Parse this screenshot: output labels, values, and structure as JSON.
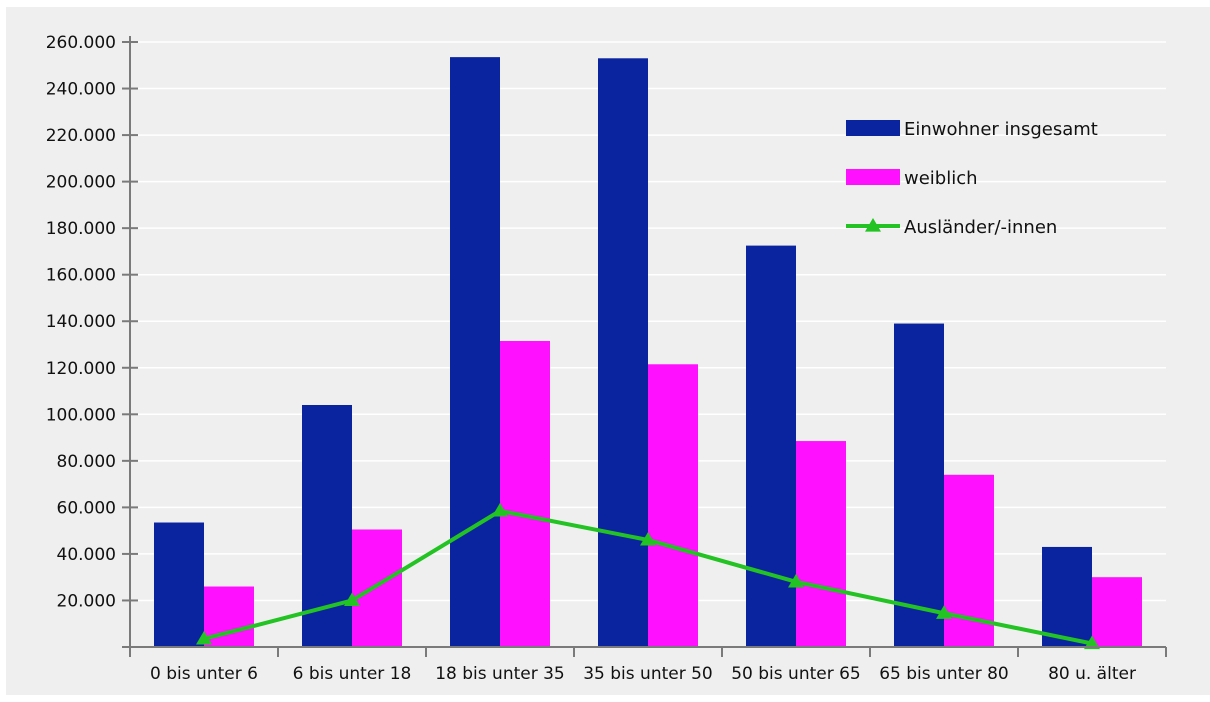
{
  "chart_data": {
    "type": "bar",
    "title": "",
    "xlabel": "",
    "ylabel": "",
    "categories": [
      "0 bis unter 6",
      "6 bis unter 18",
      "18 bis unter 35",
      "35 bis unter 50",
      "50 bis unter 65",
      "65 bis unter 80",
      "80 u. älter"
    ],
    "ylim": [
      0,
      260000
    ],
    "yticks": [
      20000,
      40000,
      60000,
      80000,
      100000,
      120000,
      140000,
      160000,
      180000,
      200000,
      220000,
      240000,
      260000
    ],
    "ytick_labels": [
      "20.000",
      "40.000",
      "60.000",
      "80.000",
      "100.000",
      "120.000",
      "140.000",
      "160.000",
      "180.000",
      "200.000",
      "220.000",
      "240.000",
      "260.000"
    ],
    "grid": true,
    "legend_position": "top-right",
    "series": [
      {
        "name": "Einwohner insgesamt",
        "kind": "bar",
        "color": "#0a24a0",
        "values": [
          53500,
          104000,
          253500,
          253000,
          172500,
          139000,
          43000
        ]
      },
      {
        "name": "weiblich",
        "kind": "bar",
        "color": "#ff10ff",
        "values": [
          26000,
          50500,
          131500,
          121500,
          88500,
          74000,
          30000
        ]
      },
      {
        "name": "Ausländer/-innen",
        "kind": "line",
        "marker": "triangle",
        "color": "#22c322",
        "values": [
          3500,
          20000,
          58500,
          46000,
          28000,
          14500,
          1500
        ]
      }
    ]
  }
}
